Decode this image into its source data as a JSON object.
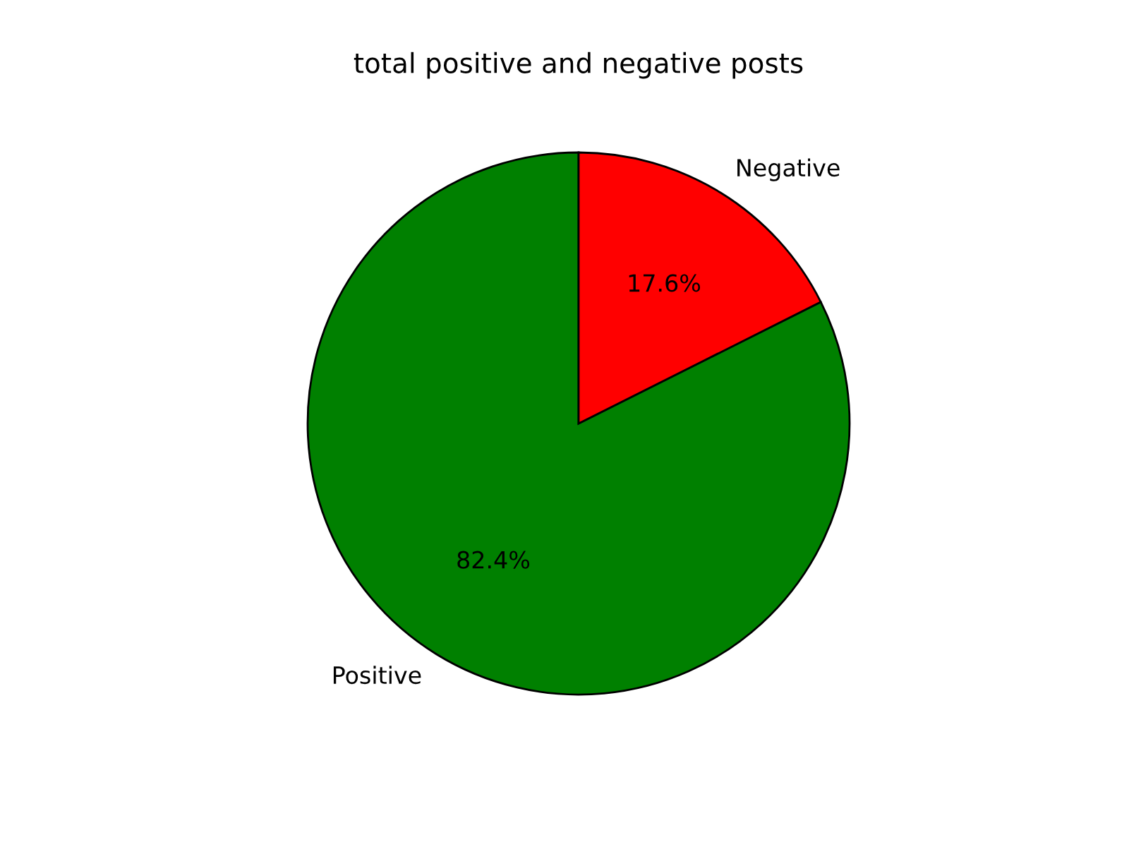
{
  "chart_data": {
    "type": "pie",
    "title": "total positive and negative posts",
    "categories": [
      "Positive",
      "Negative"
    ],
    "values": [
      82.4,
      17.6
    ],
    "colors": [
      "#008000",
      "#ff0000"
    ],
    "value_labels": [
      "82.4%",
      "17.6%"
    ]
  }
}
